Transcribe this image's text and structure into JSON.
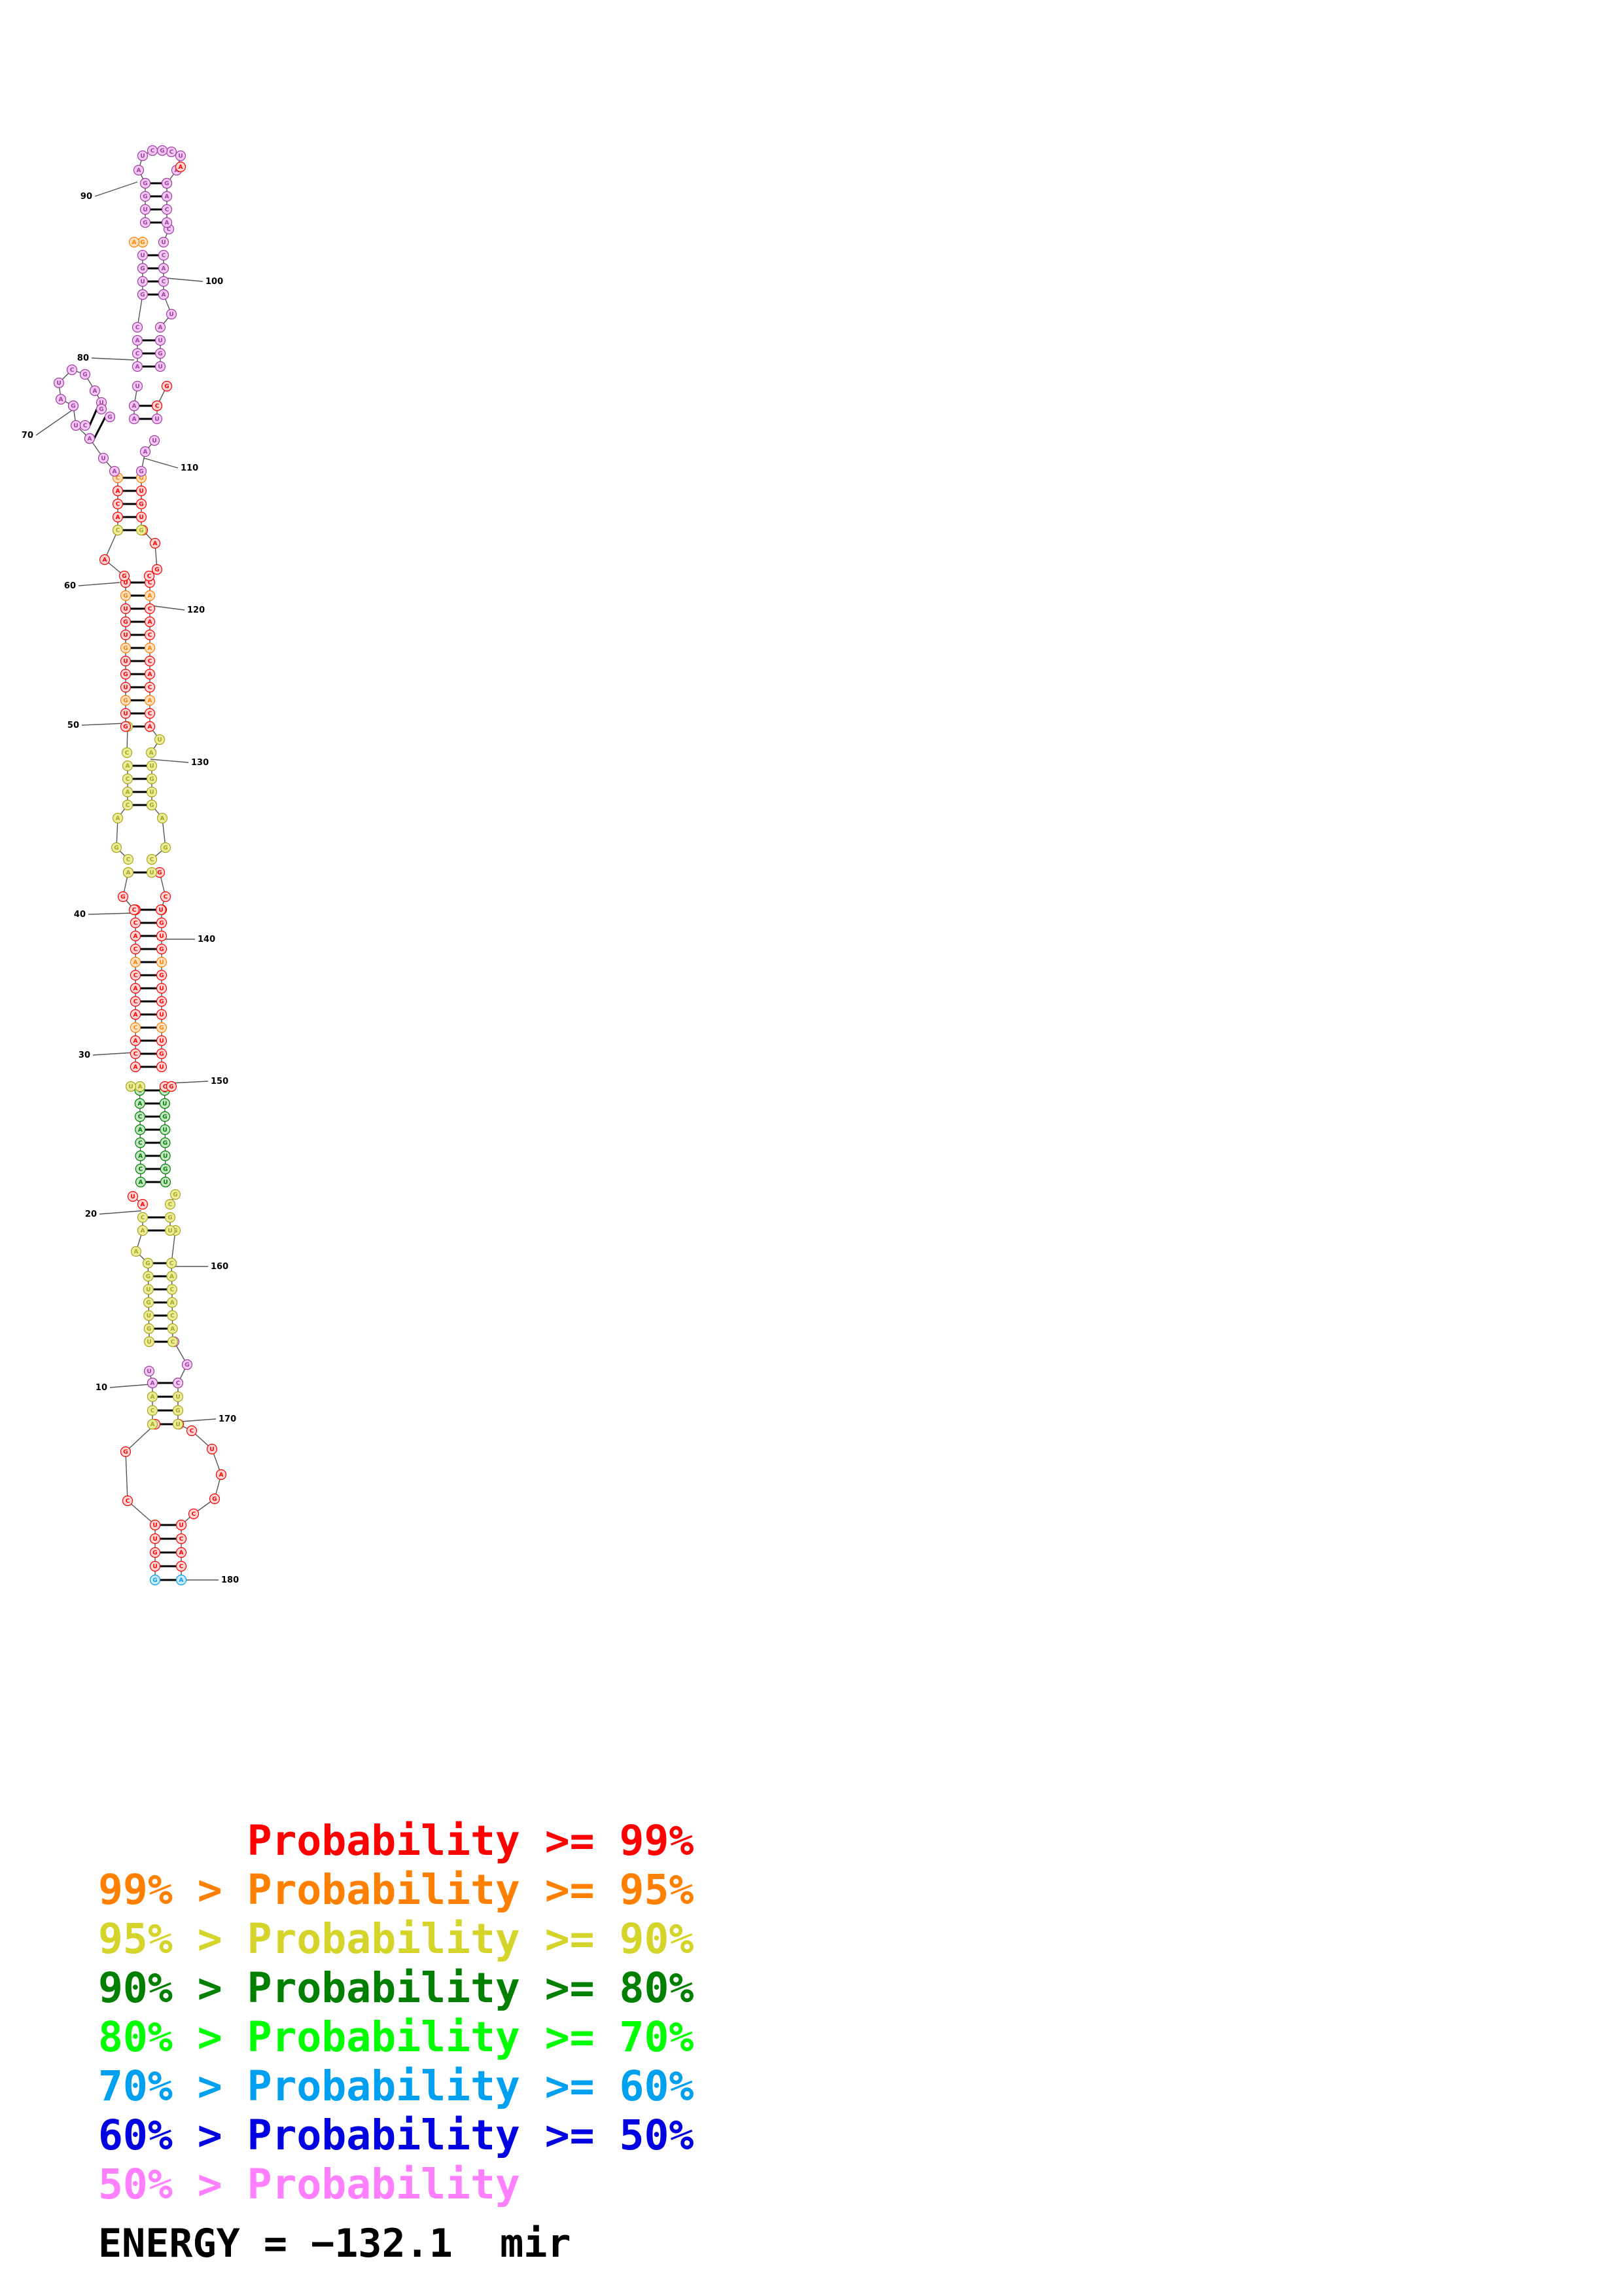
{
  "structure": {
    "position_labels": [
      "10",
      "20",
      "30",
      "40",
      "50",
      "60",
      "70",
      "80",
      "90",
      "100",
      "110",
      "120",
      "130",
      "140",
      "150",
      "160",
      "170",
      "180"
    ]
  },
  "legend": {
    "rows": [
      {
        "prefix": "",
        "text": "Probability >= 99%",
        "color": "#ff0000"
      },
      {
        "prefix": "99% > ",
        "text": "Probability >= 95%",
        "color": "#ff8000"
      },
      {
        "prefix": "95% > ",
        "text": "Probability >= 90%",
        "color": "#d4d42a"
      },
      {
        "prefix": "90% > ",
        "text": "Probability >= 80%",
        "color": "#007f00"
      },
      {
        "prefix": "80% > ",
        "text": "Probability >= 70%",
        "color": "#00ff00"
      },
      {
        "prefix": "70% > ",
        "text": "Probability >= 60%",
        "color": "#00a0f0"
      },
      {
        "prefix": "60% > ",
        "text": "Probability >= 50%",
        "color": "#0000e0"
      },
      {
        "prefix": "50% > ",
        "text": "Probability",
        "color": "#ff80ff"
      }
    ],
    "energy": "ENERGY = −132.1  mir"
  }
}
